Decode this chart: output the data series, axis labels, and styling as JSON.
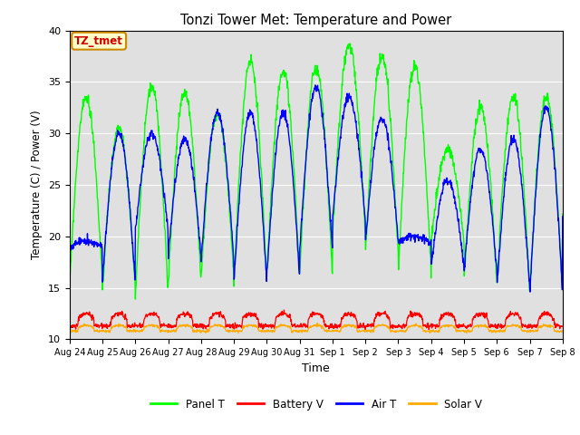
{
  "title": "Tonzi Tower Met: Temperature and Power",
  "xlabel": "Time",
  "ylabel": "Temperature (C) / Power (V)",
  "ylim": [
    10,
    40
  ],
  "yticks": [
    10,
    15,
    20,
    25,
    30,
    35,
    40
  ],
  "bg_color": "#e0e0e0",
  "fig_color": "#ffffff",
  "annotation_text": "TZ_tmet",
  "annotation_bg": "#ffffcc",
  "annotation_border": "#cc8800",
  "annotation_text_color": "#cc0000",
  "line_colors": {
    "panel_t": "#00ff00",
    "battery_v": "#ff0000",
    "air_t": "#0000ff",
    "solar_v": "#ffaa00"
  },
  "xtick_labels": [
    "Aug 24",
    "Aug 25",
    "Aug 26",
    "Aug 27",
    "Aug 28",
    "Aug 29",
    "Aug 30",
    "Aug 31",
    "Sep 1",
    "Sep 2",
    "Sep 3",
    "Sep 4",
    "Sep 5",
    "Sep 6",
    "Sep 7",
    "Sep 8"
  ],
  "n_days": 15,
  "pts_per_day": 96
}
